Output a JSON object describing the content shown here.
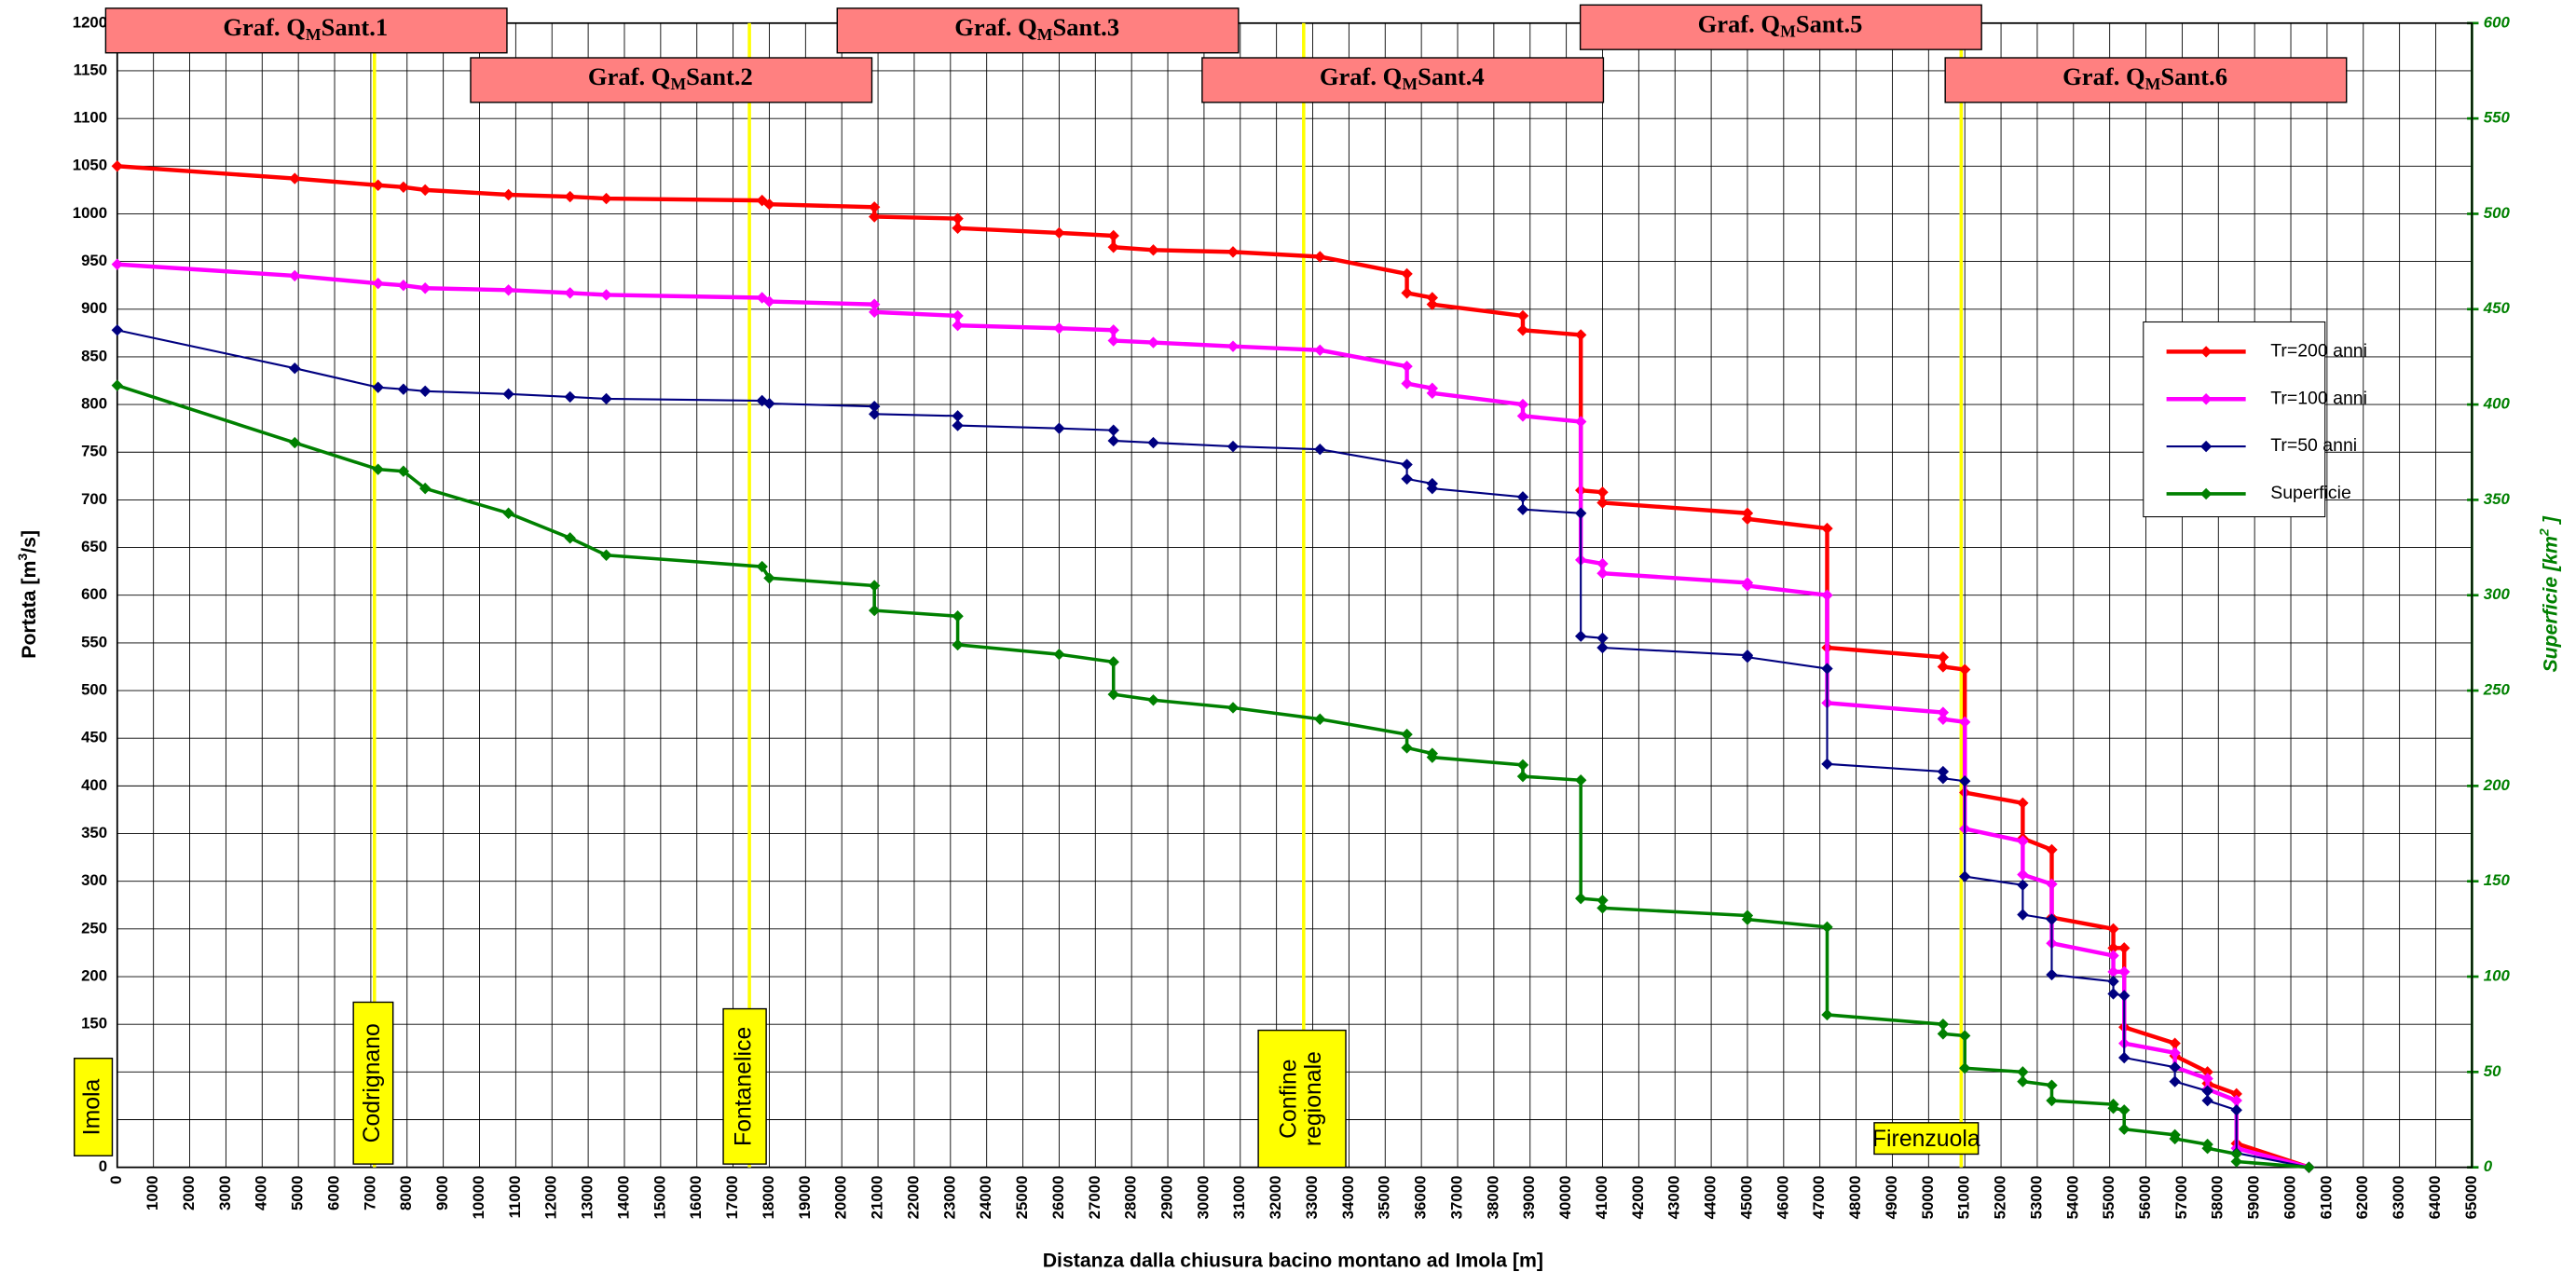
{
  "chart_data": {
    "type": "line",
    "xlabel": "Distanza dalla chiusura bacino montano ad Imola [m]",
    "ylabel": {
      "text": "Portata  [m",
      "sup": "3",
      "after": "/s]"
    },
    "y2label": {
      "text": "Superficie [km",
      "sup": "2",
      "after": " ]"
    },
    "xlim": [
      0,
      65000
    ],
    "xticks": [
      0,
      1000,
      2000,
      3000,
      4000,
      5000,
      6000,
      7000,
      8000,
      9000,
      10000,
      11000,
      12000,
      13000,
      14000,
      15000,
      16000,
      17000,
      18000,
      19000,
      20000,
      21000,
      22000,
      23000,
      24000,
      25000,
      26000,
      27000,
      28000,
      29000,
      30000,
      31000,
      32000,
      33000,
      34000,
      35000,
      36000,
      37000,
      38000,
      39000,
      40000,
      41000,
      42000,
      43000,
      44000,
      45000,
      46000,
      47000,
      48000,
      49000,
      50000,
      51000,
      52000,
      53000,
      54000,
      55000,
      56000,
      57000,
      58000,
      59000,
      60000,
      61000,
      62000,
      63000,
      64000,
      65000
    ],
    "ylim": [
      0,
      1200
    ],
    "yticks": [
      0,
      50,
      100,
      150,
      200,
      250,
      300,
      350,
      400,
      450,
      500,
      550,
      600,
      650,
      700,
      750,
      800,
      850,
      900,
      950,
      1000,
      1050,
      1100,
      1150,
      1200
    ],
    "y2lim": [
      0,
      600
    ],
    "y2ticks": [
      0,
      50,
      100,
      150,
      200,
      250,
      300,
      350,
      400,
      450,
      500,
      550,
      600
    ],
    "grid": true,
    "legend": "right",
    "series": [
      {
        "name": "Tr=200 anni",
        "color": "#ff0000",
        "x": [
          0,
          4900,
          7200,
          7900,
          8500,
          10800,
          12500,
          13500,
          17800,
          18000,
          20900,
          20900,
          23200,
          23200,
          26000,
          27500,
          27500,
          28600,
          30800,
          33200,
          35600,
          35600,
          36300,
          36300,
          38800,
          38800,
          40400,
          40400,
          41000,
          41000,
          45000,
          45000,
          47200,
          47200,
          50400,
          50400,
          51000,
          51000,
          52600,
          52600,
          53400,
          53400,
          55100,
          55100,
          55400,
          55400,
          56800,
          56800,
          57700,
          57700,
          58500,
          58500,
          60500
        ],
        "values": [
          1050,
          1037,
          1030,
          1028,
          1025,
          1020,
          1018,
          1016,
          1014,
          1010,
          1007,
          997,
          995,
          985,
          980,
          977,
          965,
          962,
          960,
          955,
          937,
          917,
          912,
          905,
          893,
          878,
          873,
          710,
          708,
          697,
          686,
          680,
          670,
          545,
          535,
          525,
          522,
          393,
          382,
          345,
          333,
          262,
          250,
          230,
          230,
          147,
          130,
          117,
          100,
          88,
          77,
          25,
          0
        ]
      },
      {
        "name": "Tr=100 anni",
        "color": "#ff00ff",
        "x": [
          0,
          4900,
          7200,
          7900,
          8500,
          10800,
          12500,
          13500,
          17800,
          18000,
          20900,
          20900,
          23200,
          23200,
          26000,
          27500,
          27500,
          28600,
          30800,
          33200,
          35600,
          35600,
          36300,
          36300,
          38800,
          38800,
          40400,
          40400,
          41000,
          41000,
          45000,
          45000,
          47200,
          47200,
          50400,
          50400,
          51000,
          51000,
          52600,
          52600,
          53400,
          53400,
          55100,
          55100,
          55400,
          55400,
          56800,
          56800,
          57700,
          57700,
          58500,
          58500,
          60500
        ],
        "values": [
          947,
          935,
          927,
          925,
          922,
          920,
          917,
          915,
          912,
          908,
          905,
          897,
          893,
          883,
          880,
          878,
          867,
          865,
          861,
          857,
          840,
          822,
          817,
          812,
          800,
          788,
          782,
          637,
          633,
          623,
          613,
          610,
          600,
          487,
          477,
          470,
          467,
          355,
          342,
          307,
          297,
          235,
          222,
          205,
          205,
          130,
          120,
          105,
          93,
          82,
          70,
          20,
          0
        ]
      },
      {
        "name": "Tr=50 anni",
        "color": "#000080",
        "x": [
          0,
          4900,
          7200,
          7900,
          8500,
          10800,
          12500,
          13500,
          17800,
          18000,
          20900,
          20900,
          23200,
          23200,
          26000,
          27500,
          27500,
          28600,
          30800,
          33200,
          35600,
          35600,
          36300,
          36300,
          38800,
          38800,
          40400,
          40400,
          41000,
          41000,
          45000,
          45000,
          47200,
          47200,
          50400,
          50400,
          51000,
          51000,
          52600,
          52600,
          53400,
          53400,
          55100,
          55100,
          55400,
          55400,
          56800,
          56800,
          57700,
          57700,
          58500,
          58500,
          60500
        ],
        "values": [
          878,
          838,
          818,
          816,
          814,
          811,
          808,
          806,
          804,
          801,
          798,
          790,
          788,
          778,
          775,
          773,
          762,
          760,
          756,
          753,
          737,
          722,
          717,
          712,
          703,
          690,
          686,
          557,
          555,
          545,
          537,
          535,
          523,
          423,
          415,
          408,
          405,
          305,
          296,
          265,
          260,
          202,
          195,
          182,
          180,
          115,
          105,
          90,
          80,
          70,
          60,
          15,
          0
        ]
      },
      {
        "name": "Superficie",
        "color": "#008000",
        "axis": "y2",
        "x": [
          0,
          4900,
          7200,
          7900,
          8500,
          10800,
          12500,
          13500,
          17800,
          18000,
          20900,
          20900,
          23200,
          23200,
          26000,
          27500,
          27500,
          28600,
          30800,
          33200,
          35600,
          35600,
          36300,
          36300,
          38800,
          38800,
          40400,
          40400,
          41000,
          41000,
          45000,
          45000,
          47200,
          47200,
          50400,
          50400,
          51000,
          51000,
          52600,
          52600,
          53400,
          53400,
          55100,
          55100,
          55400,
          55400,
          56800,
          56800,
          57700,
          57700,
          58500,
          58500,
          60500
        ],
        "values": [
          410,
          380,
          366,
          365,
          356,
          343,
          330,
          321,
          315,
          309,
          305,
          292,
          289,
          274,
          269,
          265,
          248,
          245,
          241,
          235,
          227,
          220,
          217,
          215,
          211,
          205,
          203,
          141,
          140,
          136,
          132,
          130,
          126,
          80,
          75,
          70,
          69,
          52,
          50,
          45,
          43,
          35,
          33,
          31,
          30,
          20,
          17,
          15,
          12,
          10,
          7,
          3,
          0
        ]
      }
    ],
    "graphs": [
      {
        "prefix": "Graf. Q",
        "sub": "M",
        "suffix": "Sant.1"
      },
      {
        "prefix": "Graf. Q",
        "sub": "M",
        "suffix": "Sant.2"
      },
      {
        "prefix": "Graf. Q",
        "sub": "M",
        "suffix": "Sant.3"
      },
      {
        "prefix": "Graf. Q",
        "sub": "M",
        "suffix": "Sant.4"
      },
      {
        "prefix": "Graf. Q",
        "sub": "M",
        "suffix": "Sant.5"
      },
      {
        "prefix": "Graf. Q",
        "sub": "M",
        "suffix": "Sant.6"
      }
    ],
    "places": [
      {
        "label": [
          "Imola"
        ],
        "x": 0,
        "line": false
      },
      {
        "label": [
          "Codrignano"
        ],
        "x": 7100,
        "line": true
      },
      {
        "label": [
          "Fontanelice"
        ],
        "x": 17450,
        "line": true
      },
      {
        "label": [
          "Confine",
          "regionale"
        ],
        "x": 32750,
        "line": true
      },
      {
        "label": [
          "Firenzuola"
        ],
        "x": 50900,
        "line": true
      }
    ]
  }
}
